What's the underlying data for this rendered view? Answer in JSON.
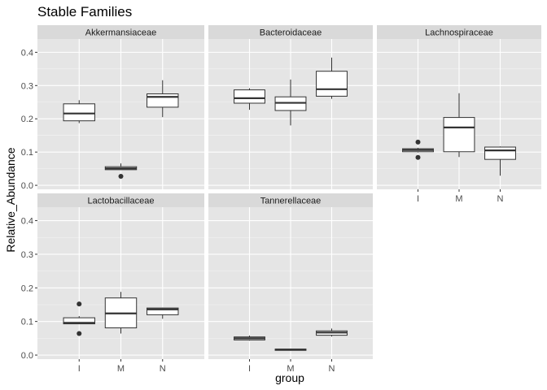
{
  "chart_data": {
    "type": "box",
    "title": "Stable Families",
    "xlabel": "group",
    "ylabel": "Relative_Abundance",
    "categories": [
      "I",
      "M",
      "N"
    ],
    "yticks": [
      "0.0",
      "0.1",
      "0.2",
      "0.3",
      "0.4"
    ],
    "ylim": [
      -0.012,
      0.44
    ],
    "grid": true,
    "panels": [
      {
        "name": "Akkermansiaceae",
        "boxes": [
          {
            "group": "I",
            "min": 0.187,
            "q1": 0.194,
            "median": 0.216,
            "q3": 0.245,
            "max": 0.256,
            "outliers": []
          },
          {
            "group": "M",
            "min": 0.046,
            "q1": 0.047,
            "median": 0.051,
            "q3": 0.056,
            "max": 0.066,
            "outliers": [
              0.027
            ]
          },
          {
            "group": "N",
            "min": 0.205,
            "q1": 0.235,
            "median": 0.266,
            "q3": 0.275,
            "max": 0.316,
            "outliers": []
          }
        ]
      },
      {
        "name": "Bacteroidaceae",
        "boxes": [
          {
            "group": "I",
            "min": 0.227,
            "q1": 0.247,
            "median": 0.262,
            "q3": 0.287,
            "max": 0.292,
            "outliers": []
          },
          {
            "group": "M",
            "min": 0.18,
            "q1": 0.225,
            "median": 0.248,
            "q3": 0.266,
            "max": 0.318,
            "outliers": []
          },
          {
            "group": "N",
            "min": 0.26,
            "q1": 0.268,
            "median": 0.289,
            "q3": 0.343,
            "max": 0.384,
            "outliers": []
          }
        ]
      },
      {
        "name": "Lachnospiraceae",
        "boxes": [
          {
            "group": "I",
            "min": 0.099,
            "q1": 0.101,
            "median": 0.106,
            "q3": 0.11,
            "max": 0.113,
            "outliers": [
              0.13,
              0.084
            ]
          },
          {
            "group": "M",
            "min": 0.085,
            "q1": 0.101,
            "median": 0.174,
            "q3": 0.204,
            "max": 0.277,
            "outliers": []
          },
          {
            "group": "N",
            "min": 0.029,
            "q1": 0.078,
            "median": 0.105,
            "q3": 0.115,
            "max": 0.117,
            "outliers": []
          }
        ]
      },
      {
        "name": "Lactobacillaceae",
        "boxes": [
          {
            "group": "I",
            "min": 0.092,
            "q1": 0.093,
            "median": 0.096,
            "q3": 0.111,
            "max": 0.116,
            "outliers": [
              0.152,
              0.064
            ]
          },
          {
            "group": "M",
            "min": 0.064,
            "q1": 0.081,
            "median": 0.124,
            "q3": 0.17,
            "max": 0.188,
            "outliers": []
          },
          {
            "group": "N",
            "min": 0.108,
            "q1": 0.12,
            "median": 0.136,
            "q3": 0.14,
            "max": 0.141,
            "outliers": []
          }
        ]
      },
      {
        "name": "Tannerellaceae",
        "boxes": [
          {
            "group": "I",
            "min": 0.043,
            "q1": 0.045,
            "median": 0.05,
            "q3": 0.054,
            "max": 0.058,
            "outliers": []
          },
          {
            "group": "M",
            "min": 0.013,
            "q1": 0.014,
            "median": 0.016,
            "q3": 0.018,
            "max": 0.019,
            "outliers": []
          },
          {
            "group": "N",
            "min": 0.055,
            "q1": 0.059,
            "median": 0.067,
            "q3": 0.072,
            "max": 0.079,
            "outliers": []
          }
        ]
      }
    ],
    "colors": {
      "panel_bg": "#e5e5e5",
      "strip_bg": "#d9d9d9",
      "grid_major": "#ffffff",
      "box_fill": "#ffffff",
      "line": "#333333"
    }
  }
}
